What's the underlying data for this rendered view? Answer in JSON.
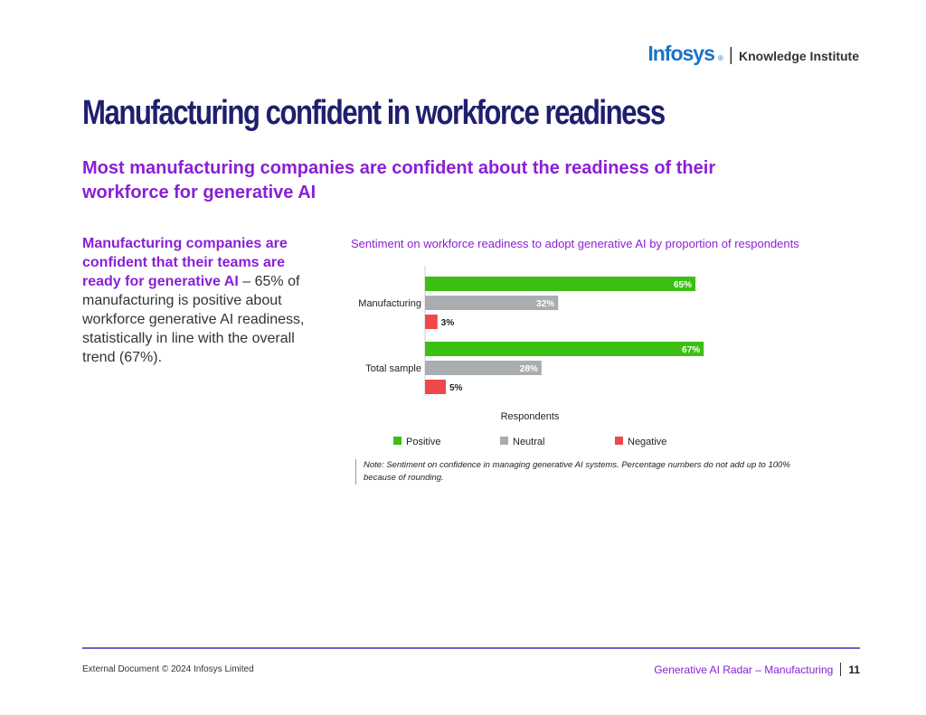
{
  "header": {
    "brand": "Infosys",
    "reg_mark": "®",
    "separator": "|",
    "institute": "Knowledge Institute"
  },
  "title": "Manufacturing confident in workforce readiness",
  "subtitle": "Most manufacturing companies are confident about the readiness of their workforce for generative AI",
  "left_text": {
    "highlight": "Manufacturing companies are confident that their teams are ready for generative AI",
    "body": " – 65% of manufacturing is positive about workforce generative AI readiness, statistically in line with the overall trend (67%)."
  },
  "chart_data": {
    "type": "bar",
    "orientation": "horizontal",
    "title": "Sentiment on workforce readiness to adopt generative AI by proportion of respondents",
    "categories": [
      "Manufacturing",
      "Total sample"
    ],
    "series": [
      {
        "name": "Positive",
        "values": [
          65,
          67
        ],
        "labels": [
          "65%",
          "67%"
        ],
        "color": "#3bbf13"
      },
      {
        "name": "Neutral",
        "values": [
          32,
          28
        ],
        "labels": [
          "32%",
          "28%"
        ],
        "color": "#a9adb0"
      },
      {
        "name": "Negative",
        "values": [
          3,
          5
        ],
        "labels": [
          "3%",
          "5%"
        ],
        "color": "#f0474c"
      }
    ],
    "xlabel": "Respondents",
    "ylabel": "",
    "xlim": [
      0,
      100
    ],
    "legend_position": "bottom"
  },
  "note": "Note: Sentiment on confidence in managing generative AI systems. Percentage numbers do not add up to 100% because of rounding.",
  "footer": {
    "left": "External Document © 2024 Infosys Limited",
    "right": "Generative AI Radar – Manufacturing",
    "page": "11"
  }
}
